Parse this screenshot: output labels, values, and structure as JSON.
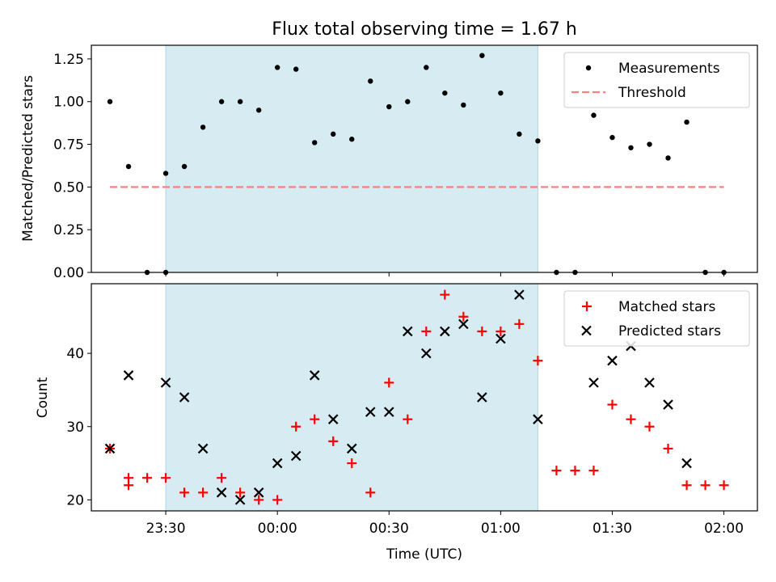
{
  "title": "Flux total observing time = 1.67 h",
  "x_axis": {
    "label": "Time (UTC)",
    "tick_labels": [
      "23:30",
      "00:00",
      "00:30",
      "01:00",
      "01:30",
      "02:00"
    ],
    "range_minutes_since_midnight_prev_day": null
  },
  "colors": {
    "shade": "#add8e6",
    "measurements": "#000000",
    "threshold": "#ff7f7f",
    "matched": "#ff0000",
    "predicted": "#000000"
  },
  "chart_data": [
    {
      "type": "scatter",
      "panel": "top",
      "ylabel": "Matched/Predicted stars",
      "ylim": [
        0,
        1.33
      ],
      "yticks": [
        0.0,
        0.25,
        0.5,
        0.75,
        1.0,
        1.25
      ],
      "ytick_labels": [
        "0.00",
        "0.25",
        "0.50",
        "0.75",
        "1.00",
        "1.25"
      ],
      "xlim": [
        "23:10",
        "02:09"
      ],
      "shaded_interval": [
        "23:30",
        "01:10"
      ],
      "legend_position": "upper right",
      "series": [
        {
          "name": "Measurements",
          "marker": "dot",
          "x": [
            "23:15",
            "23:20",
            "23:25",
            "23:30",
            "23:30",
            "23:35",
            "23:40",
            "23:45",
            "23:50",
            "23:55",
            "00:00",
            "00:05",
            "00:10",
            "00:15",
            "00:20",
            "00:25",
            "00:30",
            "00:35",
            "00:40",
            "00:45",
            "00:50",
            "00:55",
            "01:00",
            "01:05",
            "01:10",
            "01:15",
            "01:20",
            "01:25",
            "01:30",
            "01:35",
            "01:40",
            "01:45",
            "01:50",
            "01:55",
            "02:00"
          ],
          "y": [
            1.0,
            0.62,
            0.0,
            0.0,
            0.58,
            0.62,
            0.85,
            1.0,
            1.0,
            0.95,
            1.2,
            1.19,
            0.76,
            0.81,
            0.78,
            1.12,
            0.97,
            1.0,
            1.2,
            1.05,
            0.98,
            1.27,
            1.05,
            0.81,
            0.77,
            0.0,
            0.0,
            0.92,
            0.79,
            0.73,
            0.75,
            0.67,
            0.88,
            0.0,
            0.0
          ]
        },
        {
          "name": "Threshold",
          "style": "dashed",
          "x": [
            "23:15",
            "02:00"
          ],
          "y": [
            0.5,
            0.5
          ]
        }
      ]
    },
    {
      "type": "scatter",
      "panel": "bottom",
      "ylabel": "Count",
      "ylim": [
        18.5,
        49.5
      ],
      "yticks": [
        20,
        30,
        40
      ],
      "ytick_labels": [
        "20",
        "30",
        "40"
      ],
      "xlim": [
        "23:10",
        "02:09"
      ],
      "shaded_interval": [
        "23:30",
        "01:10"
      ],
      "legend_position": "upper right",
      "series": [
        {
          "name": "Matched stars",
          "marker": "plus",
          "x": [
            "23:15",
            "23:20",
            "23:25",
            "23:30",
            "23:35",
            "23:40",
            "23:45",
            "23:50",
            "23:55",
            "00:00",
            "00:05",
            "00:10",
            "00:15",
            "00:20",
            "00:25",
            "00:30",
            "00:35",
            "00:40",
            "00:45",
            "00:50",
            "00:55",
            "01:00",
            "01:05",
            "01:10",
            "01:15",
            "01:20",
            "01:25",
            "01:30",
            "01:35",
            "01:40",
            "01:45",
            "01:50",
            "01:55",
            "02:00",
            "23:20"
          ],
          "y": [
            27,
            23,
            23,
            23,
            21,
            21,
            23,
            21,
            20,
            20,
            30,
            31,
            28,
            25,
            21,
            36,
            31,
            43,
            48,
            45,
            43,
            43,
            44,
            39,
            24,
            24,
            24,
            33,
            31,
            30,
            27,
            22,
            22,
            22,
            22
          ]
        },
        {
          "name": "Predicted stars",
          "marker": "x",
          "x": [
            "23:15",
            "23:20",
            "23:30",
            "23:35",
            "23:40",
            "23:45",
            "23:50",
            "23:55",
            "00:00",
            "00:05",
            "00:10",
            "00:15",
            "00:20",
            "00:25",
            "00:30",
            "00:35",
            "00:40",
            "00:45",
            "00:50",
            "00:55",
            "01:00",
            "01:05",
            "01:10",
            "01:25",
            "01:30",
            "01:35",
            "01:40",
            "01:45",
            "01:50"
          ],
          "y": [
            27,
            37,
            36,
            34,
            27,
            21,
            20,
            21,
            25,
            26,
            37,
            31,
            27,
            32,
            32,
            43,
            40,
            43,
            44,
            34,
            42,
            48,
            31,
            36,
            39,
            41,
            36,
            33,
            25
          ]
        }
      ]
    }
  ]
}
